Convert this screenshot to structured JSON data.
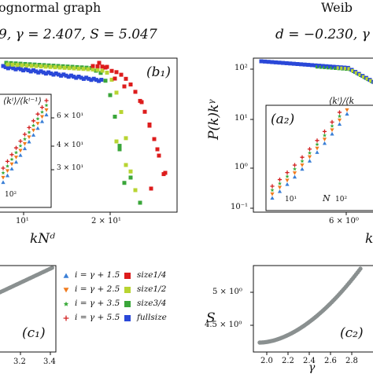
{
  "header": {
    "left_title": "ognormal graph",
    "right_title": "Weib",
    "left_params": "9, γ = 2.407, S = 5.047",
    "right_params": "d = −0.230, γ ="
  },
  "panels": {
    "b1": {
      "label": "(b₁)",
      "inset_ylabel": "⟨kⁱ⟩/⟨kⁱ⁻¹⟩",
      "inset_ticks": [
        "6 × 10¹",
        "4 × 10¹",
        "3 × 10¹",
        "10²"
      ],
      "x_ticks": [
        "10¹",
        "2 × 10¹"
      ],
      "xlabel": "kNᵈ"
    },
    "a2": {
      "label": "(a₂)",
      "ylabel": "P(k)kᵞ",
      "inset_ylabel": "⟨kⁱ⟩/⟨k",
      "y_ticks": [
        "10²",
        "10¹",
        "10⁰",
        "10⁻¹"
      ],
      "inset_x_ticks": [
        "10¹",
        "10²"
      ],
      "inset_xlabel": "N",
      "x_ticks": [
        "6 × 10⁰"
      ],
      "xlabel": "k"
    },
    "c1": {
      "label": "(c₁)",
      "x_ticks": [
        "3.2",
        "3.4"
      ]
    },
    "c2": {
      "label": "(c₂)",
      "ylabel": "S",
      "xlabel": "γ",
      "y_ticks": [
        "5 × 10⁰",
        "4.5 × 10⁰"
      ],
      "x_ticks": [
        "2.0",
        "2.2",
        "2.4",
        "2.6",
        "2.8"
      ]
    }
  },
  "legend": {
    "left": [
      {
        "label": "i = γ + 1.5",
        "color": "#3a7fd6",
        "marker": "triangle-up"
      },
      {
        "label": "i = γ + 2.5",
        "color": "#f07b1e",
        "marker": "triangle-down"
      },
      {
        "label": "i = γ + 3.5",
        "color": "#3aaa3a",
        "marker": "star"
      },
      {
        "label": "i = γ + 5.5",
        "color": "#d22020",
        "marker": "plus"
      }
    ],
    "right": [
      {
        "label": "size1/4",
        "color": "#dd1c1c",
        "marker": "square"
      },
      {
        "label": "size1/2",
        "color": "#b8d432",
        "marker": "square"
      },
      {
        "label": "size3/4",
        "color": "#3aa63a",
        "marker": "square"
      },
      {
        "label": "fullsize",
        "color": "#2a48d8",
        "marker": "square"
      }
    ]
  },
  "colors": {
    "size14": "#dd1c1c",
    "size12": "#b8d432",
    "size34": "#3aa63a",
    "fullsize": "#2a48d8",
    "gamma_curve": "#8a9090"
  }
}
